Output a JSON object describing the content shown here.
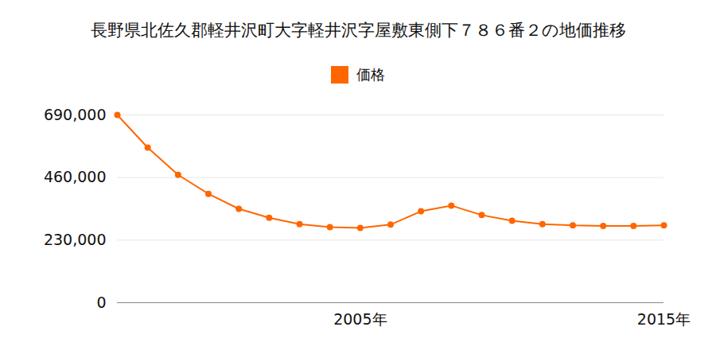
{
  "chart_data": {
    "type": "line",
    "title": "長野県北佐久郡軽井沢町大字軽井沢字屋敷東側下７８６番２の地価推移",
    "x": [
      1997,
      1998,
      1999,
      2000,
      2001,
      2002,
      2003,
      2004,
      2005,
      2006,
      2007,
      2008,
      2009,
      2010,
      2011,
      2012,
      2013,
      2014,
      2015
    ],
    "series": [
      {
        "name": "価格",
        "color": "#ff6600",
        "values": [
          690000,
          570000,
          470000,
          400000,
          345000,
          312000,
          289000,
          278000,
          275000,
          287000,
          336000,
          357000,
          322000,
          301000,
          289000,
          284000,
          282000,
          282000,
          284000
        ]
      }
    ],
    "xlim": [
      1997,
      2015
    ],
    "xticks": [
      {
        "value": 2005,
        "label": "2005年"
      },
      {
        "value": 2015,
        "label": "2015年"
      }
    ],
    "ylim": [
      0,
      690000
    ],
    "yticks": [
      0,
      {
        "value": 230000,
        "label": "230,000"
      },
      {
        "value": 460000,
        "label": "460,000"
      },
      {
        "value": 690000,
        "label": "690,000"
      }
    ],
    "grid": true,
    "legend": "top",
    "marker": "circle"
  }
}
